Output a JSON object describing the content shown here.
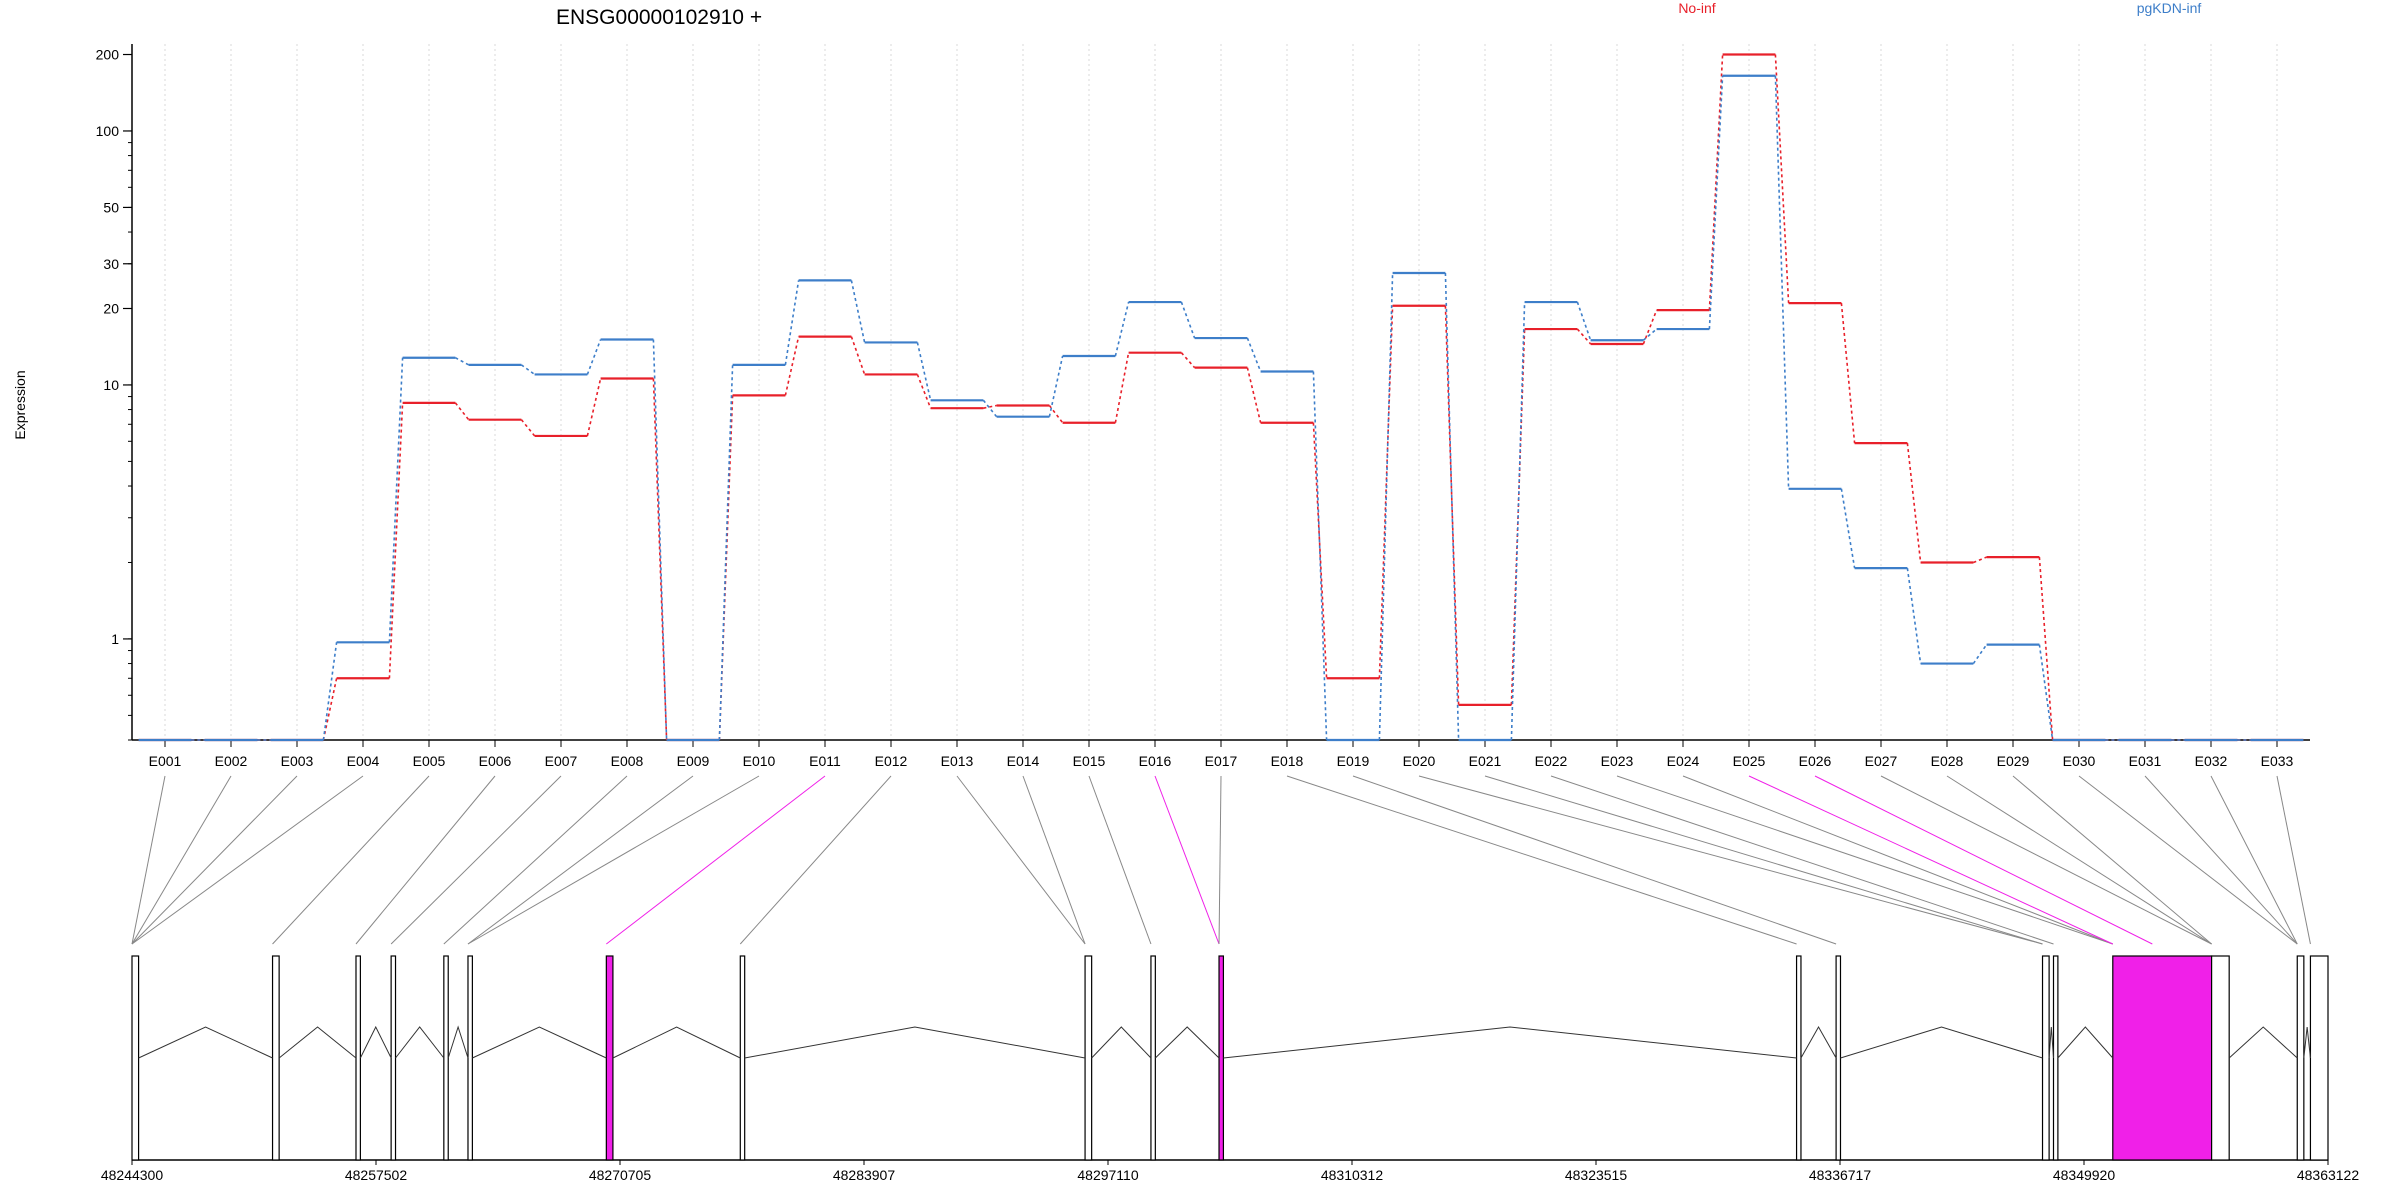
{
  "chart_data": {
    "type": "line",
    "title": "ENSG00000102910 +",
    "ylabel": "Expression",
    "xlabel": "",
    "y_scale": "log",
    "y_ticks": [
      1,
      10,
      20,
      30,
      50,
      100,
      200
    ],
    "grid": true,
    "legend_placement": "top",
    "categories": [
      "E001",
      "E002",
      "E003",
      "E004",
      "E005",
      "E006",
      "E007",
      "E008",
      "E009",
      "E010",
      "E011",
      "E012",
      "E013",
      "E014",
      "E015",
      "E016",
      "E017",
      "E018",
      "E019",
      "E020",
      "E021",
      "E022",
      "E023",
      "E024",
      "E025",
      "E026",
      "E027",
      "E028",
      "E029",
      "E030",
      "E031",
      "E032",
      "E033"
    ],
    "series": [
      {
        "name": "No-inf",
        "color": "#e8202a",
        "values": [
          0.4,
          0.4,
          0.4,
          0.7,
          8.5,
          7.3,
          6.3,
          10.6,
          0.4,
          9.1,
          15.5,
          11.0,
          8.1,
          8.3,
          7.1,
          13.4,
          11.7,
          7.1,
          0.7,
          20.5,
          0.55,
          16.6,
          14.5,
          19.7,
          200,
          21,
          5.9,
          2.0,
          2.1,
          0.4,
          0.4,
          0.4,
          0.4
        ]
      },
      {
        "name": "pgKDN-inf",
        "color": "#3d7ec9",
        "values": [
          0.4,
          0.4,
          0.4,
          0.97,
          12.8,
          12.0,
          11.0,
          15.1,
          0.4,
          12.0,
          25.8,
          14.7,
          8.7,
          7.5,
          13.0,
          21.2,
          15.3,
          11.3,
          0.4,
          27.6,
          0.4,
          21.2,
          15.0,
          16.6,
          165,
          3.9,
          1.9,
          0.8,
          0.95,
          0.4,
          0.4,
          0.4,
          0.4
        ]
      }
    ],
    "gene_model": {
      "coordinate_labels": [
        "48244300",
        "48257502",
        "48270705",
        "48283907",
        "48297110",
        "48310312",
        "48323515",
        "48336717",
        "48349920",
        "48363122"
      ],
      "highlight_color": "#f020e8",
      "highlighted_exons": [
        "E011",
        "E016",
        "E025",
        "E026"
      ]
    }
  }
}
